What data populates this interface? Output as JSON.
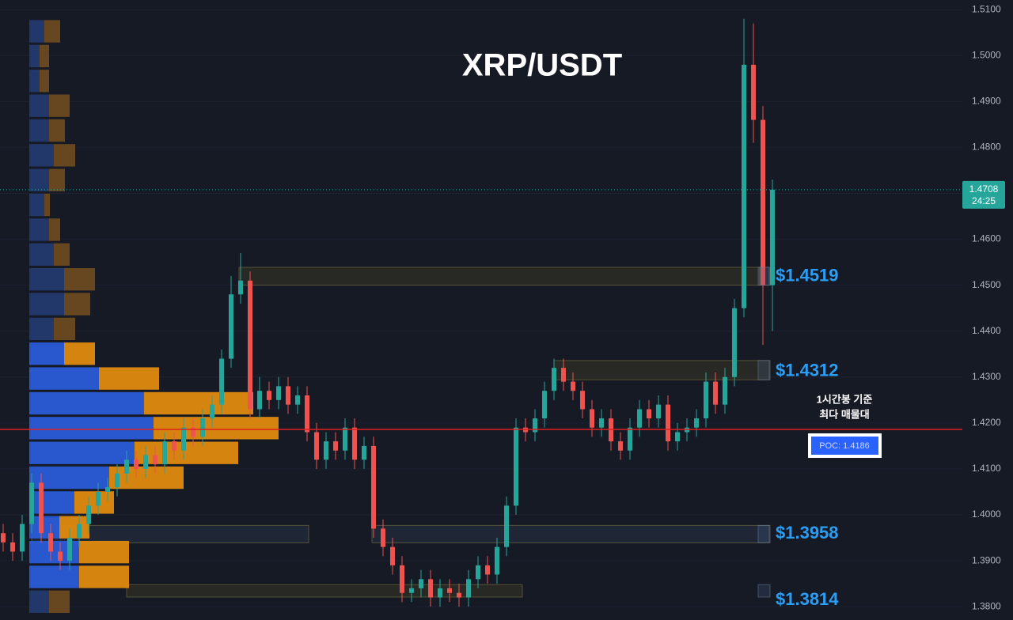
{
  "chart_data": {
    "type": "candlestick",
    "title": "XRP/USDT",
    "ylim": [
      1.3771,
      1.5121
    ],
    "yticks": [
      {
        "value": 1.51,
        "label": "1.5100"
      },
      {
        "value": 1.5,
        "label": "1.5000"
      },
      {
        "value": 1.49,
        "label": "1.4900"
      },
      {
        "value": 1.48,
        "label": "1.4800"
      },
      {
        "value": 1.47,
        "label": "1.4700"
      },
      {
        "value": 1.46,
        "label": "1.4600"
      },
      {
        "value": 1.45,
        "label": "1.4500"
      },
      {
        "value": 1.44,
        "label": "1.4400"
      },
      {
        "value": 1.43,
        "label": "1.4300"
      },
      {
        "value": 1.42,
        "label": "1.4200"
      },
      {
        "value": 1.41,
        "label": "1.4100"
      },
      {
        "value": 1.4,
        "label": "1.4000"
      },
      {
        "value": 1.39,
        "label": "1.3900"
      },
      {
        "value": 1.38,
        "label": "1.3800"
      }
    ],
    "grid": true,
    "up_color": "#26a69a",
    "down_color": "#ef5350",
    "open": [
      1.396,
      1.394,
      1.392,
      1.398,
      1.407,
      1.396,
      1.392,
      1.39,
      1.395,
      1.398,
      1.402,
      1.405,
      1.406,
      1.409,
      1.412,
      1.41,
      1.413,
      1.411,
      1.416,
      1.414,
      1.419,
      1.417,
      1.421,
      1.424,
      1.434,
      1.448,
      1.451,
      1.423,
      1.427,
      1.425,
      1.428,
      1.424,
      1.426,
      1.418,
      1.412,
      1.416,
      1.414,
      1.419,
      1.412,
      1.415,
      1.397,
      1.393,
      1.389,
      1.383,
      1.384,
      1.386,
      1.382,
      1.384,
      1.383,
      1.382,
      1.386,
      1.389,
      1.387,
      1.393,
      1.402,
      1.419,
      1.418,
      1.421,
      1.427,
      1.432,
      1.429,
      1.427,
      1.423,
      1.419,
      1.421,
      1.416,
      1.414,
      1.419,
      1.423,
      1.421,
      1.424,
      1.416,
      1.418,
      1.419,
      1.421,
      1.429,
      1.424,
      1.43,
      1.445,
      1.498,
      1.486,
      1.45
    ],
    "high": [
      1.398,
      1.396,
      1.4,
      1.409,
      1.409,
      1.398,
      1.394,
      1.397,
      1.4,
      1.404,
      1.407,
      1.408,
      1.411,
      1.414,
      1.414,
      1.415,
      1.415,
      1.418,
      1.418,
      1.421,
      1.421,
      1.423,
      1.426,
      1.436,
      1.452,
      1.457,
      1.453,
      1.43,
      1.429,
      1.43,
      1.43,
      1.428,
      1.428,
      1.42,
      1.418,
      1.418,
      1.421,
      1.421,
      1.417,
      1.417,
      1.399,
      1.395,
      1.391,
      1.386,
      1.388,
      1.388,
      1.386,
      1.386,
      1.385,
      1.388,
      1.391,
      1.391,
      1.395,
      1.404,
      1.421,
      1.421,
      1.423,
      1.429,
      1.434,
      1.434,
      1.431,
      1.429,
      1.425,
      1.423,
      1.423,
      1.418,
      1.421,
      1.425,
      1.425,
      1.426,
      1.426,
      1.42,
      1.421,
      1.423,
      1.431,
      1.431,
      1.432,
      1.447,
      1.508,
      1.507,
      1.489,
      1.473
    ],
    "low": [
      1.392,
      1.39,
      1.39,
      1.396,
      1.394,
      1.39,
      1.388,
      1.388,
      1.393,
      1.396,
      1.4,
      1.403,
      1.404,
      1.407,
      1.408,
      1.408,
      1.409,
      1.409,
      1.412,
      1.412,
      1.415,
      1.415,
      1.419,
      1.422,
      1.432,
      1.446,
      1.421,
      1.421,
      1.423,
      1.423,
      1.422,
      1.422,
      1.416,
      1.41,
      1.41,
      1.412,
      1.412,
      1.41,
      1.41,
      1.395,
      1.391,
      1.387,
      1.381,
      1.381,
      1.382,
      1.38,
      1.38,
      1.381,
      1.38,
      1.38,
      1.384,
      1.385,
      1.385,
      1.391,
      1.4,
      1.416,
      1.416,
      1.419,
      1.425,
      1.427,
      1.425,
      1.421,
      1.417,
      1.417,
      1.414,
      1.412,
      1.412,
      1.417,
      1.419,
      1.419,
      1.414,
      1.414,
      1.416,
      1.417,
      1.419,
      1.422,
      1.422,
      1.428,
      1.443,
      1.481,
      1.437,
      1.44
    ],
    "close": [
      1.394,
      1.392,
      1.398,
      1.407,
      1.396,
      1.392,
      1.39,
      1.395,
      1.398,
      1.402,
      1.405,
      1.406,
      1.409,
      1.412,
      1.41,
      1.413,
      1.411,
      1.416,
      1.414,
      1.419,
      1.417,
      1.421,
      1.424,
      1.434,
      1.448,
      1.451,
      1.423,
      1.427,
      1.425,
      1.428,
      1.424,
      1.426,
      1.418,
      1.412,
      1.416,
      1.414,
      1.419,
      1.412,
      1.415,
      1.397,
      1.393,
      1.389,
      1.383,
      1.384,
      1.386,
      1.382,
      1.384,
      1.383,
      1.382,
      1.386,
      1.389,
      1.387,
      1.393,
      1.402,
      1.419,
      1.418,
      1.421,
      1.427,
      1.432,
      1.429,
      1.427,
      1.423,
      1.419,
      1.421,
      1.416,
      1.414,
      1.419,
      1.423,
      1.421,
      1.424,
      1.416,
      1.418,
      1.419,
      1.421,
      1.429,
      1.424,
      1.43,
      1.445,
      1.498,
      1.486,
      1.45,
      1.4708
    ],
    "current_price": {
      "value": 1.4708,
      "label": "1.4708"
    },
    "countdown": "24:25",
    "levels": [
      {
        "value": 1.4519,
        "label": "$1.4519",
        "zone": [
          1.45,
          1.4539
        ]
      },
      {
        "value": 1.4312,
        "label": "$1.4312",
        "zone": [
          1.4294,
          1.4336
        ]
      },
      {
        "value": 1.3958,
        "label": "$1.3958",
        "zone": [
          1.3939,
          1.3977
        ]
      },
      {
        "value": 1.3814,
        "label": "$1.3814",
        "zone": [
          1.3821,
          1.3848
        ]
      }
    ],
    "poc": {
      "value": 1.4186,
      "label": "POC: 1.4186"
    },
    "poc_note": [
      "1시간봉 기준",
      "최다 매물대"
    ],
    "volume_profile": {
      "range": [
        1.3783,
        1.5079
      ],
      "buy_color": "#2a5bd7",
      "sell_color": "#e08a0f",
      "dim_buy_color": "#233a6e",
      "dim_sell_color": "#6b4a1f",
      "rows": [
        {
          "buy": 19,
          "sell": 20,
          "value_area": false
        },
        {
          "buy": 13,
          "sell": 12,
          "value_area": false
        },
        {
          "buy": 13,
          "sell": 12,
          "value_area": false
        },
        {
          "buy": 25,
          "sell": 26,
          "value_area": false
        },
        {
          "buy": 25,
          "sell": 20,
          "value_area": false
        },
        {
          "buy": 31,
          "sell": 27,
          "value_area": false
        },
        {
          "buy": 25,
          "sell": 20,
          "value_area": false
        },
        {
          "buy": 19,
          "sell": 7,
          "value_area": false
        },
        {
          "buy": 25,
          "sell": 14,
          "value_area": false
        },
        {
          "buy": 31,
          "sell": 20,
          "value_area": false
        },
        {
          "buy": 44,
          "sell": 39,
          "value_area": false
        },
        {
          "buy": 44,
          "sell": 33,
          "value_area": false
        },
        {
          "buy": 31,
          "sell": 27,
          "value_area": false
        },
        {
          "buy": 44,
          "sell": 39,
          "value_area": true
        },
        {
          "buy": 88,
          "sell": 76,
          "value_area": true
        },
        {
          "buy": 145,
          "sell": 138,
          "value_area": true
        },
        {
          "buy": 157,
          "sell": 158,
          "value_area": true
        },
        {
          "buy": 133,
          "sell": 131,
          "value_area": true
        },
        {
          "buy": 101,
          "sell": 94,
          "value_area": true
        },
        {
          "buy": 57,
          "sell": 50,
          "value_area": true
        },
        {
          "buy": 38,
          "sell": 38,
          "value_area": true
        },
        {
          "buy": 63,
          "sell": 63,
          "value_area": true
        },
        {
          "buy": 63,
          "sell": 63,
          "value_area": true
        },
        {
          "buy": 25,
          "sell": 26,
          "value_area": false
        }
      ]
    }
  }
}
